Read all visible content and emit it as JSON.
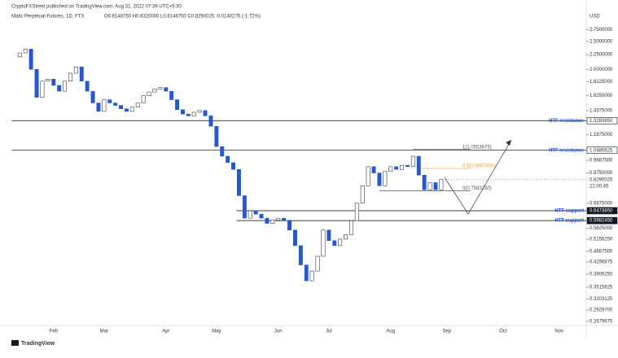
{
  "chart_data": {
    "type": "candlestick",
    "publisher": "CryptoFXStreet published on TradingView.com, Aug 31, 2022 07:39 UTC+5:30",
    "title": "Matic Perpetual Futures, 1D, FTX",
    "ohlc_text": "O0.8148750 H0.8320000 L0.8148750 C0.8290025 -0.0140275 (-1.72%)",
    "currency": "USD",
    "brand": "TradingView",
    "categories": [
      null,
      null,
      null,
      null,
      null,
      null,
      null,
      "Feb",
      null,
      null,
      null,
      null,
      null,
      null,
      null,
      null,
      "Mar",
      null,
      null,
      null,
      null,
      null,
      null,
      null,
      null,
      null,
      null,
      "Apr",
      null,
      null,
      null,
      null,
      null,
      null,
      null,
      null,
      "May",
      null,
      null,
      null,
      null,
      null,
      null,
      null,
      null,
      null,
      null,
      "Jun",
      null,
      null,
      null,
      null,
      null,
      null,
      null,
      null,
      "Jul",
      null,
      null,
      null,
      null,
      null,
      null,
      null,
      null,
      null,
      null,
      "Aug",
      null,
      null,
      null,
      null,
      null,
      null,
      null,
      null,
      null,
      "Sep",
      null,
      null,
      null,
      null,
      null,
      null,
      null,
      null,
      null,
      "Oct",
      null,
      null,
      null,
      null,
      null,
      null,
      null,
      null,
      null,
      "Nov",
      null,
      null,
      null,
      null
    ],
    "values": [
      2.21,
      2.28,
      2.35,
      2.0,
      1.6,
      1.82,
      1.85,
      1.76,
      1.68,
      1.82,
      1.94,
      2.04,
      1.82,
      1.68,
      1.53,
      1.43,
      1.57,
      1.53,
      1.5,
      1.46,
      1.43,
      1.48,
      1.53,
      1.62,
      1.67,
      1.71,
      1.73,
      1.68,
      1.57,
      1.45,
      1.4,
      1.38,
      1.42,
      1.44,
      1.38,
      1.27,
      1.08,
      1.0,
      0.95,
      0.9,
      0.73,
      0.61,
      0.647,
      0.63,
      0.61,
      0.585,
      0.6,
      0.61,
      0.6,
      0.555,
      0.49,
      0.42,
      0.37,
      0.4,
      0.45,
      0.555,
      0.51,
      0.49,
      0.516,
      0.535,
      0.598,
      0.6875,
      0.79,
      0.92,
      0.875,
      0.79,
      0.885,
      0.92,
      0.9,
      0.93,
      0.92,
      1.0,
      0.86,
      0.765,
      0.81,
      0.765,
      0.83,
      null,
      null,
      null,
      null,
      null,
      null,
      null,
      null,
      null,
      null,
      null,
      null,
      null,
      null,
      null,
      null,
      null,
      null,
      null,
      null,
      null,
      null,
      null,
      null,
      null
    ],
    "up_color": "#ffffff",
    "down_color": "#2157d8",
    "log_scale": true,
    "ylim": [
      0.246,
      3.26
    ],
    "yticks": [
      {
        "value": 2.75,
        "label": "2.7500000"
      },
      {
        "value": 2.5,
        "label": "2.5000000"
      },
      {
        "value": 2.25,
        "label": "2.2500000"
      },
      {
        "value": 2.0,
        "label": "2.0000000"
      },
      {
        "value": 1.8125,
        "label": "1.8125000"
      },
      {
        "value": 1.625,
        "label": "1.6250000"
      },
      {
        "value": 1.4375,
        "label": "1.4375000"
      },
      {
        "value": 1.1875,
        "label": "1.1875000"
      },
      {
        "value": 0.96875,
        "label": "0.9687500"
      },
      {
        "value": 0.875,
        "label": "0.8750000"
      },
      {
        "value": 0.6875,
        "label": "0.6875000"
      },
      {
        "value": 0.5625,
        "label": "0.5625000"
      },
      {
        "value": 0.515625,
        "label": "0.5156250"
      },
      {
        "value": 0.46875,
        "label": "0.4687500"
      },
      {
        "value": 0.4296875,
        "label": "0.4296875"
      },
      {
        "value": 0.390625,
        "label": "0.3906250"
      },
      {
        "value": 0.3515625,
        "label": "0.3515625"
      },
      {
        "value": 0.3203125,
        "label": "0.3203125"
      },
      {
        "value": 0.29297,
        "label": "0.2929700"
      },
      {
        "value": 0.2679675,
        "label": "0.2679675"
      }
    ],
    "levels": [
      {
        "label": "HTF resistance",
        "value": 1.328385,
        "price_label": "1.3283850",
        "color": "#000000",
        "start": 0
      },
      {
        "label": "HTF resistance",
        "value": 1.0485625,
        "price_label": "1.0485625",
        "color": "#000000",
        "start": 0
      },
      {
        "label": "HTF support",
        "value": 0.647385,
        "price_label": "0.6473850",
        "color": "#000000",
        "start": 40
      },
      {
        "label": "HTF support",
        "value": 0.598245,
        "price_label": "0.5982450",
        "color": "#000000",
        "start": 40
      }
    ],
    "fib": [
      {
        "label": "1(1.0553675)",
        "value": 1.0553675,
        "color": "#555555",
        "start": 71
      },
      {
        "label": "0.5(0.9067456)",
        "value": 0.9067456,
        "color": "#f5a623",
        "start": 72
      },
      {
        "label": "0(0.7583250)",
        "value": 0.758325,
        "color": "#555555",
        "start": 65
      }
    ],
    "last_price": {
      "value": 0.8290025,
      "label": "0.8290025",
      "countdown": "21:00:45"
    }
  }
}
